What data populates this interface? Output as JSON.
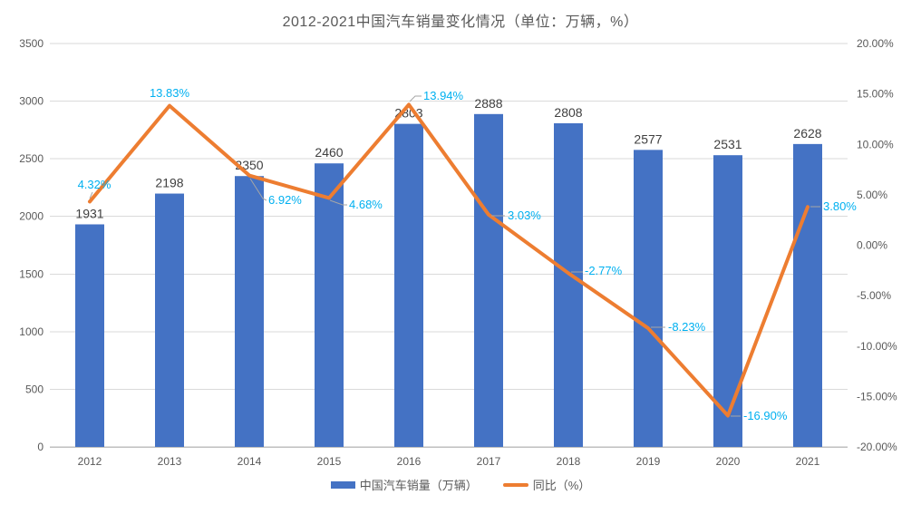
{
  "title": "2012-2021中国汽车销量变化情况（单位：万辆，%）",
  "legend": {
    "bar_label": "中国汽车销量（万辆）",
    "line_label": "同比（%）"
  },
  "left_axis_ticks": [
    "3500",
    "3000",
    "2500",
    "2000",
    "1500",
    "1000",
    "500",
    "0"
  ],
  "right_axis_ticks": [
    "20.00%",
    "15.00%",
    "10.00%",
    "5.00%",
    "0.00%",
    "-5.00%",
    "-10.00%",
    "-15.00%",
    "-20.00%"
  ],
  "colors": {
    "bar": "#4472C4",
    "line": "#ED7D31",
    "pct_label": "#00B0F0",
    "value_label": "#404040",
    "axis_text": "#595959",
    "gridline": "#DADADA",
    "baseline": "#BFBFBF",
    "leader": "#A6A6A6"
  },
  "chart_data": {
    "type": "bar",
    "subtype": "combo-bar-line-dual-axis",
    "title": "2012-2021中国汽车销量变化情况（单位：万辆，%）",
    "categories": [
      "2012",
      "2013",
      "2014",
      "2015",
      "2016",
      "2017",
      "2018",
      "2019",
      "2020",
      "2021"
    ],
    "series": [
      {
        "name": "中国汽车销量（万辆）",
        "type": "bar",
        "axis": "left",
        "values": [
          1931,
          2198,
          2350,
          2460,
          2803,
          2888,
          2808,
          2577,
          2531,
          2628
        ],
        "labels": [
          "1931",
          "2198",
          "2350",
          "2460",
          "2803",
          "2888",
          "2808",
          "2577",
          "2531",
          "2628"
        ]
      },
      {
        "name": "同比（%）",
        "type": "line",
        "axis": "right",
        "values": [
          4.32,
          13.83,
          6.92,
          4.68,
          13.94,
          3.03,
          -2.77,
          -8.23,
          -16.9,
          3.8
        ],
        "labels": [
          "4.32%",
          "13.83%",
          "6.92%",
          "4.68%",
          "13.94%",
          "3.03%",
          "-2.77%",
          "-8.23%",
          "-16.90%",
          "3.80%"
        ]
      }
    ],
    "left_axis": {
      "min": 0,
      "max": 3500,
      "step": 500
    },
    "right_axis": {
      "min": -20,
      "max": 20,
      "step": 5
    },
    "grid": true,
    "legend_position": "bottom"
  }
}
